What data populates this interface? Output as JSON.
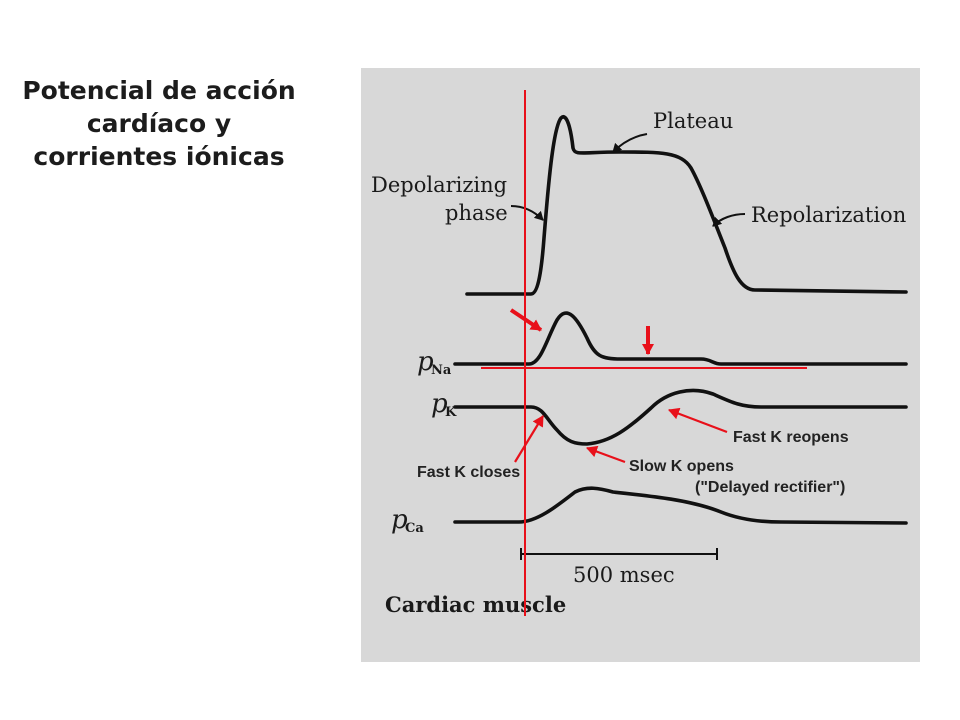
{
  "slide": {
    "title_lines": [
      "Potencial de acción",
      "cardíaco y",
      "corrientes iónicas"
    ]
  },
  "figure": {
    "labels": {
      "plateau": "Plateau",
      "depolarizing_1": "Depolarizing",
      "depolarizing_2": "phase",
      "repolarization": "Repolarization",
      "p_na": "p",
      "p_na_sub": "Na",
      "p_k": "p",
      "p_k_sub": "K",
      "p_ca": "p",
      "p_ca_sub": "Ca",
      "scale": "500 msec",
      "caption": "Cardiac muscle"
    },
    "annotations": {
      "fast_k_closes": "Fast K closes",
      "slow_k_opens": "Slow K opens",
      "delayed_rectifier": "(\"Delayed rectifier\")",
      "fast_k_reopens": "Fast K reopens"
    },
    "colors": {
      "annotation": "#e8101a",
      "panel_background": "#d8d8d8",
      "ink": "#111111"
    }
  }
}
